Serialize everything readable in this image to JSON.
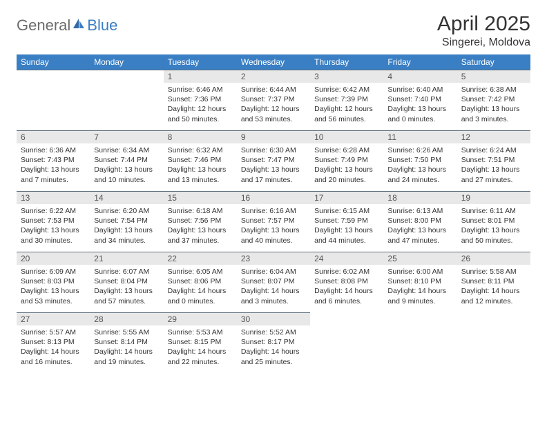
{
  "logo": {
    "text1": "General",
    "text2": "Blue"
  },
  "header": {
    "title": "April 2025",
    "location": "Singerei, Moldova"
  },
  "colors": {
    "header_bg": "#3a7fc4",
    "header_text": "#ffffff",
    "daynum_bg": "#e8e8e8",
    "row_border": "#5a6b7a",
    "body_text": "#333333",
    "logo_gray": "#6b6b6b",
    "logo_blue": "#3a7fc4"
  },
  "weekdays": [
    "Sunday",
    "Monday",
    "Tuesday",
    "Wednesday",
    "Thursday",
    "Friday",
    "Saturday"
  ],
  "weeks": [
    [
      null,
      null,
      {
        "n": "1",
        "sr": "6:46 AM",
        "ss": "7:36 PM",
        "dl": "12 hours and 50 minutes."
      },
      {
        "n": "2",
        "sr": "6:44 AM",
        "ss": "7:37 PM",
        "dl": "12 hours and 53 minutes."
      },
      {
        "n": "3",
        "sr": "6:42 AM",
        "ss": "7:39 PM",
        "dl": "12 hours and 56 minutes."
      },
      {
        "n": "4",
        "sr": "6:40 AM",
        "ss": "7:40 PM",
        "dl": "13 hours and 0 minutes."
      },
      {
        "n": "5",
        "sr": "6:38 AM",
        "ss": "7:42 PM",
        "dl": "13 hours and 3 minutes."
      }
    ],
    [
      {
        "n": "6",
        "sr": "6:36 AM",
        "ss": "7:43 PM",
        "dl": "13 hours and 7 minutes."
      },
      {
        "n": "7",
        "sr": "6:34 AM",
        "ss": "7:44 PM",
        "dl": "13 hours and 10 minutes."
      },
      {
        "n": "8",
        "sr": "6:32 AM",
        "ss": "7:46 PM",
        "dl": "13 hours and 13 minutes."
      },
      {
        "n": "9",
        "sr": "6:30 AM",
        "ss": "7:47 PM",
        "dl": "13 hours and 17 minutes."
      },
      {
        "n": "10",
        "sr": "6:28 AM",
        "ss": "7:49 PM",
        "dl": "13 hours and 20 minutes."
      },
      {
        "n": "11",
        "sr": "6:26 AM",
        "ss": "7:50 PM",
        "dl": "13 hours and 24 minutes."
      },
      {
        "n": "12",
        "sr": "6:24 AM",
        "ss": "7:51 PM",
        "dl": "13 hours and 27 minutes."
      }
    ],
    [
      {
        "n": "13",
        "sr": "6:22 AM",
        "ss": "7:53 PM",
        "dl": "13 hours and 30 minutes."
      },
      {
        "n": "14",
        "sr": "6:20 AM",
        "ss": "7:54 PM",
        "dl": "13 hours and 34 minutes."
      },
      {
        "n": "15",
        "sr": "6:18 AM",
        "ss": "7:56 PM",
        "dl": "13 hours and 37 minutes."
      },
      {
        "n": "16",
        "sr": "6:16 AM",
        "ss": "7:57 PM",
        "dl": "13 hours and 40 minutes."
      },
      {
        "n": "17",
        "sr": "6:15 AM",
        "ss": "7:59 PM",
        "dl": "13 hours and 44 minutes."
      },
      {
        "n": "18",
        "sr": "6:13 AM",
        "ss": "8:00 PM",
        "dl": "13 hours and 47 minutes."
      },
      {
        "n": "19",
        "sr": "6:11 AM",
        "ss": "8:01 PM",
        "dl": "13 hours and 50 minutes."
      }
    ],
    [
      {
        "n": "20",
        "sr": "6:09 AM",
        "ss": "8:03 PM",
        "dl": "13 hours and 53 minutes."
      },
      {
        "n": "21",
        "sr": "6:07 AM",
        "ss": "8:04 PM",
        "dl": "13 hours and 57 minutes."
      },
      {
        "n": "22",
        "sr": "6:05 AM",
        "ss": "8:06 PM",
        "dl": "14 hours and 0 minutes."
      },
      {
        "n": "23",
        "sr": "6:04 AM",
        "ss": "8:07 PM",
        "dl": "14 hours and 3 minutes."
      },
      {
        "n": "24",
        "sr": "6:02 AM",
        "ss": "8:08 PM",
        "dl": "14 hours and 6 minutes."
      },
      {
        "n": "25",
        "sr": "6:00 AM",
        "ss": "8:10 PM",
        "dl": "14 hours and 9 minutes."
      },
      {
        "n": "26",
        "sr": "5:58 AM",
        "ss": "8:11 PM",
        "dl": "14 hours and 12 minutes."
      }
    ],
    [
      {
        "n": "27",
        "sr": "5:57 AM",
        "ss": "8:13 PM",
        "dl": "14 hours and 16 minutes."
      },
      {
        "n": "28",
        "sr": "5:55 AM",
        "ss": "8:14 PM",
        "dl": "14 hours and 19 minutes."
      },
      {
        "n": "29",
        "sr": "5:53 AM",
        "ss": "8:15 PM",
        "dl": "14 hours and 22 minutes."
      },
      {
        "n": "30",
        "sr": "5:52 AM",
        "ss": "8:17 PM",
        "dl": "14 hours and 25 minutes."
      },
      null,
      null,
      null
    ]
  ],
  "labels": {
    "sunrise": "Sunrise:",
    "sunset": "Sunset:",
    "daylight": "Daylight:"
  }
}
